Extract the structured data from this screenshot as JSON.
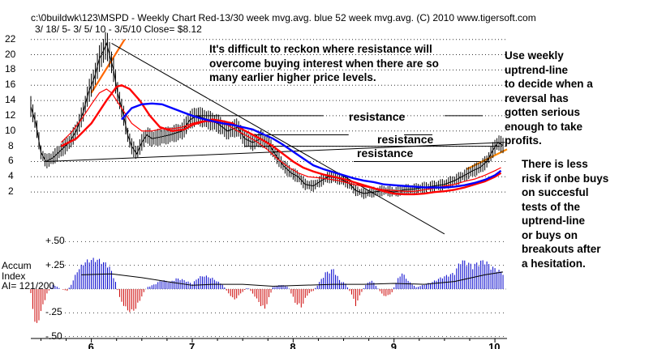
{
  "chart_data": {
    "type": "line",
    "title": "c:\\0buildwk\\123\\MSPD  - Weekly Chart  Red-13/30 week mvg.avg.  blue 52 week mvg.avg.  (C) 2010 www.tigersoft.com",
    "subtitle": "3/ 18/ 5- 3/ 5/ 10 - 3/5/10    Close= $8.12",
    "price_axis": {
      "ticks": [
        "22",
        "20",
        "18",
        "16",
        "14",
        "12",
        "10",
        "8",
        "6",
        "4",
        "2"
      ],
      "ylim": [
        0,
        22.5
      ]
    },
    "x_ticks": [
      "6",
      "7",
      "8",
      "9",
      "10"
    ],
    "x_tick_pos": [
      6,
      7,
      8,
      9,
      10
    ],
    "xlim": [
      5.4,
      10.12
    ],
    "price_points": [
      [
        5.4,
        13.2
      ],
      [
        5.45,
        11.0
      ],
      [
        5.5,
        7.2
      ],
      [
        5.55,
        6.0
      ],
      [
        5.62,
        6.5
      ],
      [
        5.7,
        7.5
      ],
      [
        5.78,
        8.5
      ],
      [
        5.85,
        10.0
      ],
      [
        5.92,
        12.5
      ],
      [
        5.97,
        15.0
      ],
      [
        6.03,
        17.0
      ],
      [
        6.08,
        19.5
      ],
      [
        6.12,
        20.5
      ],
      [
        6.15,
        21.5
      ],
      [
        6.18,
        20.0
      ],
      [
        6.22,
        18.0
      ],
      [
        6.26,
        15.0
      ],
      [
        6.32,
        12.0
      ],
      [
        6.36,
        9.5
      ],
      [
        6.4,
        8.0
      ],
      [
        6.45,
        7.0
      ],
      [
        6.5,
        8.5
      ],
      [
        6.55,
        9.5
      ],
      [
        6.6,
        9.0
      ],
      [
        6.68,
        9.2
      ],
      [
        6.78,
        9.5
      ],
      [
        6.9,
        10.0
      ],
      [
        6.98,
        11.5
      ],
      [
        7.05,
        12.0
      ],
      [
        7.15,
        11.5
      ],
      [
        7.25,
        11.0
      ],
      [
        7.35,
        10.0
      ],
      [
        7.45,
        10.5
      ],
      [
        7.52,
        9.0
      ],
      [
        7.6,
        8.5
      ],
      [
        7.68,
        9.0
      ],
      [
        7.75,
        8.5
      ],
      [
        7.82,
        7.0
      ],
      [
        7.9,
        5.5
      ],
      [
        7.98,
        4.5
      ],
      [
        8.05,
        4.0
      ],
      [
        8.12,
        3.0
      ],
      [
        8.2,
        2.8
      ],
      [
        8.28,
        3.5
      ],
      [
        8.35,
        4.0
      ],
      [
        8.45,
        3.8
      ],
      [
        8.55,
        3.2
      ],
      [
        8.62,
        2.2
      ],
      [
        8.7,
        1.8
      ],
      [
        8.8,
        2.0
      ],
      [
        8.9,
        2.2
      ],
      [
        9.0,
        2.0
      ],
      [
        9.1,
        2.3
      ],
      [
        9.2,
        2.4
      ],
      [
        9.3,
        2.6
      ],
      [
        9.4,
        2.8
      ],
      [
        9.5,
        3.0
      ],
      [
        9.6,
        3.5
      ],
      [
        9.7,
        4.2
      ],
      [
        9.78,
        4.8
      ],
      [
        9.85,
        5.2
      ],
      [
        9.92,
        6.0
      ],
      [
        9.98,
        7.5
      ],
      [
        10.03,
        8.5
      ],
      [
        10.08,
        8.1
      ]
    ],
    "series": [
      {
        "color": "#ff0000",
        "values": [
          [
            5.7,
            8.5
          ],
          [
            5.8,
            9.8
          ],
          [
            5.9,
            11.5
          ],
          [
            6.0,
            13.5
          ],
          [
            6.08,
            15.0
          ],
          [
            6.15,
            15.5
          ],
          [
            6.2,
            15.0
          ],
          [
            6.3,
            13.0
          ],
          [
            6.4,
            11.0
          ],
          [
            6.5,
            10.0
          ],
          [
            6.6,
            10.0
          ],
          [
            6.7,
            10.3
          ],
          [
            6.8,
            10.3
          ],
          [
            6.9,
            10.5
          ],
          [
            7.0,
            11.0
          ],
          [
            7.1,
            11.3
          ],
          [
            7.2,
            11.2
          ],
          [
            7.35,
            10.8
          ],
          [
            7.45,
            10.0
          ],
          [
            7.55,
            9.3
          ],
          [
            7.65,
            8.5
          ],
          [
            7.75,
            7.5
          ],
          [
            7.85,
            6.3
          ],
          [
            7.95,
            5.3
          ],
          [
            8.05,
            4.5
          ],
          [
            8.15,
            4.0
          ],
          [
            8.3,
            3.8
          ],
          [
            8.45,
            3.5
          ],
          [
            8.6,
            3.0
          ],
          [
            8.75,
            2.6
          ],
          [
            8.9,
            2.3
          ],
          [
            9.0,
            2.2
          ],
          [
            9.1,
            2.1
          ],
          [
            9.2,
            2.1
          ],
          [
            9.3,
            2.3
          ],
          [
            9.4,
            2.5
          ],
          [
            9.5,
            2.8
          ],
          [
            9.6,
            3.0
          ],
          [
            9.7,
            3.4
          ],
          [
            9.8,
            3.7
          ],
          [
            9.9,
            4.2
          ],
          [
            10.0,
            4.8
          ],
          [
            10.06,
            5.2
          ]
        ]
      },
      {
        "color": "#ff0000",
        "values": [
          [
            5.7,
            8.0
          ],
          [
            5.85,
            9.0
          ],
          [
            6.0,
            11.0
          ],
          [
            6.15,
            14.0
          ],
          [
            6.25,
            15.8
          ],
          [
            6.3,
            16.0
          ],
          [
            6.38,
            15.5
          ],
          [
            6.48,
            14.0
          ],
          [
            6.58,
            12.0
          ],
          [
            6.68,
            10.5
          ],
          [
            6.8,
            10.0
          ],
          [
            6.92,
            10.2
          ],
          [
            7.0,
            10.8
          ],
          [
            7.1,
            11.2
          ],
          [
            7.2,
            11.5
          ],
          [
            7.3,
            11.3
          ],
          [
            7.4,
            11.0
          ],
          [
            7.5,
            10.2
          ],
          [
            7.6,
            9.5
          ],
          [
            7.7,
            8.8
          ],
          [
            7.8,
            8.0
          ],
          [
            7.9,
            7.0
          ],
          [
            8.0,
            6.0
          ],
          [
            8.1,
            5.2
          ],
          [
            8.2,
            4.7
          ],
          [
            8.3,
            4.3
          ],
          [
            8.4,
            4.0
          ],
          [
            8.5,
            3.7
          ],
          [
            8.6,
            3.3
          ],
          [
            8.7,
            2.9
          ],
          [
            8.8,
            2.5
          ],
          [
            8.9,
            2.1
          ],
          [
            9.0,
            1.8
          ],
          [
            9.1,
            1.7
          ],
          [
            9.2,
            1.7
          ],
          [
            9.3,
            1.8
          ],
          [
            9.4,
            2.0
          ],
          [
            9.5,
            2.1
          ],
          [
            9.6,
            2.3
          ],
          [
            9.7,
            2.6
          ],
          [
            9.8,
            3.0
          ],
          [
            9.9,
            3.4
          ],
          [
            10.0,
            4.0
          ],
          [
            10.06,
            4.5
          ]
        ]
      },
      {
        "color": "#0000ff",
        "values": [
          [
            6.3,
            11.5
          ],
          [
            6.4,
            13.0
          ],
          [
            6.5,
            13.5
          ],
          [
            6.6,
            13.6
          ],
          [
            6.7,
            13.5
          ],
          [
            6.8,
            13.0
          ],
          [
            6.9,
            12.5
          ],
          [
            7.0,
            12.0
          ],
          [
            7.1,
            11.6
          ],
          [
            7.2,
            11.3
          ],
          [
            7.3,
            11.0
          ],
          [
            7.4,
            10.8
          ],
          [
            7.5,
            10.5
          ],
          [
            7.6,
            10.2
          ],
          [
            7.7,
            9.6
          ],
          [
            7.8,
            9.0
          ],
          [
            7.9,
            8.2
          ],
          [
            8.0,
            7.3
          ],
          [
            8.1,
            6.4
          ],
          [
            8.2,
            5.5
          ],
          [
            8.3,
            5.0
          ],
          [
            8.4,
            4.6
          ],
          [
            8.5,
            4.2
          ],
          [
            8.6,
            3.8
          ],
          [
            8.7,
            3.5
          ],
          [
            8.8,
            3.3
          ],
          [
            8.9,
            3.0
          ],
          [
            9.0,
            2.9
          ],
          [
            9.1,
            2.8
          ],
          [
            9.2,
            2.7
          ],
          [
            9.3,
            2.6
          ],
          [
            9.4,
            2.6
          ],
          [
            9.5,
            2.6
          ],
          [
            9.6,
            2.7
          ],
          [
            9.7,
            2.9
          ],
          [
            9.8,
            3.2
          ],
          [
            9.9,
            3.6
          ],
          [
            10.0,
            4.2
          ],
          [
            10.06,
            4.8
          ]
        ]
      }
    ],
    "trend_lines": [
      {
        "color": "#ff6600",
        "from": [
          6.0,
          15.0
        ],
        "to": [
          6.33,
          22.0
        ]
      },
      {
        "color": "#ff8800",
        "from": [
          9.72,
          5.0
        ],
        "to": [
          10.12,
          7.6
        ]
      },
      {
        "color": "#000000",
        "from": [
          6.2,
          21.5
        ],
        "to": [
          9.5,
          -3.5
        ]
      },
      {
        "color": "#000000",
        "from": [
          5.55,
          6.0
        ],
        "to": [
          10.1,
          8.5
        ]
      }
    ],
    "resistance_lines": [
      {
        "y": 12.0,
        "x1": 7.02,
        "x2": 8.3
      },
      {
        "y": 12.0,
        "x1": 9.5,
        "x2": 9.88
      },
      {
        "y": 9.5,
        "x1": 7.6,
        "x2": 8.55
      },
      {
        "y": 9.5,
        "x1": 9.1,
        "x2": 9.38
      },
      {
        "y": 8.0,
        "x1": 7.52,
        "x2": 10.05
      },
      {
        "y": 6.0,
        "x1": 8.6,
        "x2": 9.95
      }
    ],
    "accum": {
      "label": "Accum\nIndex\nAI= 121/200",
      "ticks": [
        "+.50",
        "+.25",
        "-.25",
        "-.50"
      ],
      "tick_values": [
        0.5,
        0.25,
        -0.25,
        -0.5
      ],
      "ylim": [
        -0.52,
        0.52
      ],
      "points": [
        [
          5.4,
          -0.05
        ],
        [
          5.45,
          -0.45
        ],
        [
          5.5,
          -0.25
        ],
        [
          5.56,
          -0.05
        ],
        [
          5.62,
          0.05
        ],
        [
          5.7,
          0.0
        ],
        [
          5.76,
          -0.02
        ],
        [
          5.8,
          0.05
        ],
        [
          5.86,
          0.2
        ],
        [
          5.93,
          0.3
        ],
        [
          6.0,
          0.33
        ],
        [
          6.06,
          0.33
        ],
        [
          6.12,
          0.3
        ],
        [
          6.18,
          0.25
        ],
        [
          6.24,
          0.08
        ],
        [
          6.28,
          -0.1
        ],
        [
          6.34,
          -0.22
        ],
        [
          6.4,
          -0.26
        ],
        [
          6.45,
          -0.2
        ],
        [
          6.5,
          -0.08
        ],
        [
          6.55,
          0.02
        ],
        [
          6.62,
          0.05
        ],
        [
          6.7,
          0.1
        ],
        [
          6.78,
          0.08
        ],
        [
          6.85,
          0.12
        ],
        [
          6.92,
          0.1
        ],
        [
          7.0,
          0.06
        ],
        [
          7.06,
          0.13
        ],
        [
          7.12,
          0.15
        ],
        [
          7.2,
          0.12
        ],
        [
          7.3,
          0.05
        ],
        [
          7.36,
          -0.05
        ],
        [
          7.42,
          -0.12
        ],
        [
          7.48,
          -0.05
        ],
        [
          7.55,
          0.02
        ],
        [
          7.62,
          -0.08
        ],
        [
          7.68,
          -0.18
        ],
        [
          7.72,
          -0.22
        ],
        [
          7.8,
          0.02
        ],
        [
          7.88,
          0.05
        ],
        [
          7.95,
          0.03
        ],
        [
          8.02,
          -0.15
        ],
        [
          8.08,
          -0.2
        ],
        [
          8.15,
          -0.05
        ],
        [
          8.2,
          -0.02
        ],
        [
          8.25,
          0.06
        ],
        [
          8.32,
          0.18
        ],
        [
          8.4,
          0.22
        ],
        [
          8.46,
          0.1
        ],
        [
          8.52,
          0.06
        ],
        [
          8.58,
          -0.06
        ],
        [
          8.62,
          -0.18
        ],
        [
          8.67,
          -0.05
        ],
        [
          8.72,
          0.05
        ],
        [
          8.78,
          0.1
        ],
        [
          8.83,
          0.02
        ],
        [
          8.9,
          -0.08
        ],
        [
          8.97,
          -0.06
        ],
        [
          9.03,
          0.1
        ],
        [
          9.08,
          0.18
        ],
        [
          9.15,
          0.08
        ],
        [
          9.22,
          0.02
        ],
        [
          9.3,
          0.05
        ],
        [
          9.38,
          0.08
        ],
        [
          9.45,
          0.12
        ],
        [
          9.52,
          0.15
        ],
        [
          9.6,
          0.18
        ],
        [
          9.66,
          0.32
        ],
        [
          9.72,
          0.3
        ],
        [
          9.78,
          0.26
        ],
        [
          9.84,
          0.3
        ],
        [
          9.9,
          0.32
        ],
        [
          9.96,
          0.25
        ],
        [
          10.02,
          0.22
        ],
        [
          10.08,
          0.18
        ]
      ],
      "avg": [
        [
          5.9,
          0.15
        ],
        [
          6.2,
          0.16
        ],
        [
          6.5,
          0.12
        ],
        [
          6.8,
          0.07
        ],
        [
          7.0,
          0.04
        ],
        [
          7.2,
          0.05
        ],
        [
          7.5,
          0.05
        ],
        [
          7.8,
          0.03
        ],
        [
          8.1,
          0.04
        ],
        [
          8.4,
          0.05
        ],
        [
          8.7,
          0.05
        ],
        [
          9.0,
          0.06
        ],
        [
          9.3,
          0.05
        ],
        [
          9.6,
          0.08
        ],
        [
          9.9,
          0.15
        ],
        [
          10.08,
          0.18
        ]
      ]
    }
  },
  "annotations": {
    "top": "It's difficult to reckon where resistance will\novercome buying interest when there are so\nmany earlier higher price levels.",
    "right": "Use weekly\nuptrend-line\nto decide when a\nreversal has\ngotten serious\nenough to take\nprofits.",
    "lower_right": "There is less\nrisk if onbe buys\non succesful\ntests of the\nuptrend-line\nor buys on\nbreakouts after\na hesitation.",
    "resistance_1": "resistance",
    "resistance_2": "resistance",
    "resistance_3": "resistance"
  }
}
